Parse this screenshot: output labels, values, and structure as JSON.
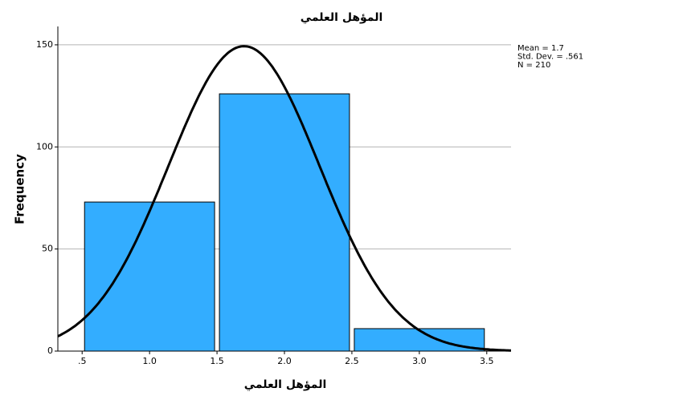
{
  "chart_data": {
    "type": "histogram",
    "title": "المؤهل العلمي",
    "x_label": "المؤهل العلمي",
    "y_label": "Frequency",
    "bins": [
      0.5,
      1.5,
      2.5,
      3.5
    ],
    "values": [
      73,
      126,
      11
    ],
    "color": "#33adff",
    "xlim": [
      0.32,
      3.68
    ],
    "xticks": [
      {
        "value": 0.5,
        "label": ".5"
      },
      {
        "value": 1,
        "label": "1.0"
      },
      {
        "value": 1.5,
        "label": "1.5"
      },
      {
        "value": 2,
        "label": "2.0"
      },
      {
        "value": 2.5,
        "label": "2.5"
      },
      {
        "value": 3,
        "label": "3.0"
      },
      {
        "value": 3.5,
        "label": "3.5"
      }
    ],
    "ylim": [
      0,
      159
    ],
    "yticks": [
      0,
      50,
      100,
      150
    ],
    "grid": true,
    "normal_curve": true,
    "stats": [
      {
        "value": 1.7,
        "label": "Mean = 1.7"
      },
      {
        "value": 0.561,
        "label": "Std. Dev. = .561"
      },
      {
        "value": 210,
        "label": "N = 210"
      }
    ]
  }
}
